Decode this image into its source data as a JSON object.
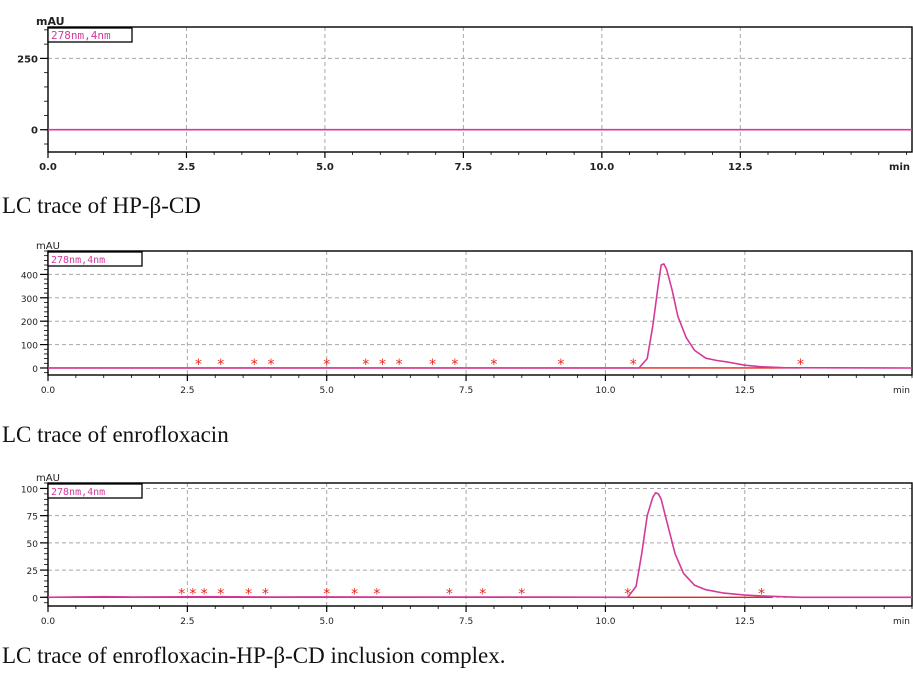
{
  "chart_data": [
    {
      "type": "line",
      "unit_label": "mAU",
      "legend": "278nm,4nm",
      "x_end_label": "min",
      "xlim": [
        0,
        15.6
      ],
      "ylim": [
        -78,
        360
      ],
      "x_ticks": [
        0,
        2.5,
        5,
        7.5,
        10,
        12.5
      ],
      "x_tick_labels": [
        "0.0",
        "2.5",
        "5.0",
        "7.5",
        "10.0",
        "12.5"
      ],
      "y_ticks": [
        0,
        250
      ],
      "y_tick_labels": [
        "0",
        "250"
      ],
      "grid": true,
      "series": [
        {
          "color": "#d4399a",
          "x": [
            0,
            15.6
          ],
          "y": [
            0,
            0
          ]
        }
      ],
      "baseline": {
        "color": "#e8231a",
        "x": [
          0,
          0.6
        ],
        "y": [
          0,
          0
        ]
      },
      "peak_markers": [],
      "caption": "LC trace of HP-β-CD"
    },
    {
      "type": "line",
      "unit_label": "mAU",
      "legend": "278nm,4nm",
      "x_end_label": "min",
      "xlim": [
        0,
        15.5
      ],
      "ylim": [
        -30,
        500
      ],
      "x_ticks": [
        0,
        2.5,
        5,
        7.5,
        10,
        12.5
      ],
      "x_tick_labels": [
        "0.0",
        "2.5",
        "5.0",
        "7.5",
        "10.0",
        "12.5"
      ],
      "y_ticks": [
        0,
        100,
        200,
        300,
        400
      ],
      "y_tick_labels": [
        "0",
        "100",
        "200",
        "300",
        "400"
      ],
      "grid": true,
      "series": [
        {
          "color": "#d4399a",
          "x": [
            0,
            10.6,
            10.75,
            10.85,
            10.95,
            11.0,
            11.05,
            11.1,
            11.2,
            11.3,
            11.45,
            11.6,
            11.8,
            12.0,
            12.2,
            12.5,
            12.8,
            13.2,
            15.5
          ],
          "y": [
            0,
            0,
            40,
            180,
            360,
            440,
            445,
            420,
            330,
            220,
            130,
            75,
            42,
            32,
            25,
            12,
            5,
            1,
            0
          ]
        }
      ],
      "baseline": {
        "color": "#e8231a",
        "x": [
          0,
          10.6,
          13.5
        ],
        "y": [
          0,
          0,
          0
        ]
      },
      "peak_markers": [
        2.7,
        3.1,
        3.7,
        4.0,
        5.0,
        5.7,
        6.0,
        6.3,
        6.9,
        7.3,
        8.0,
        9.2,
        10.5,
        13.5
      ],
      "caption": "LC trace of enrofloxacin"
    },
    {
      "type": "line",
      "unit_label": "mAU",
      "legend": "278nm,4nm",
      "x_end_label": "min",
      "xlim": [
        0,
        15.5
      ],
      "ylim": [
        -8,
        105
      ],
      "x_ticks": [
        0,
        2.5,
        5,
        7.5,
        10,
        12.5
      ],
      "x_tick_labels": [
        "0.0",
        "2.5",
        "5.0",
        "7.5",
        "10.0",
        "12.5"
      ],
      "y_ticks": [
        0,
        25,
        50,
        75,
        100
      ],
      "y_tick_labels": [
        "0",
        "25",
        "50",
        "75",
        "100"
      ],
      "grid": true,
      "series": [
        {
          "color": "#d4399a",
          "x": [
            0,
            1.0,
            1.5,
            2.0,
            3.0,
            4.0,
            5.0,
            6.0,
            7.0,
            8.0,
            9.0,
            10.4,
            10.55,
            10.65,
            10.75,
            10.85,
            10.9,
            10.95,
            11.0,
            11.1,
            11.25,
            11.4,
            11.6,
            11.8,
            12.1,
            12.5,
            12.9,
            13.5,
            15.5
          ],
          "y": [
            0,
            0.5,
            0.3,
            0.4,
            0.5,
            0.3,
            0.4,
            0.3,
            0.2,
            0.3,
            0.2,
            0,
            10,
            40,
            75,
            92,
            96,
            95,
            90,
            70,
            40,
            22,
            11,
            7,
            4,
            2,
            1,
            0,
            0
          ]
        }
      ],
      "baseline": {
        "color": "#e8231a",
        "x": [
          0,
          10.4,
          13.0
        ],
        "y": [
          0,
          0,
          0
        ]
      },
      "peak_markers": [
        2.4,
        2.6,
        2.8,
        3.1,
        3.6,
        3.9,
        5.0,
        5.5,
        5.9,
        7.2,
        7.8,
        8.5,
        10.4,
        12.8
      ],
      "caption": "LC trace of enrofloxacin-HP-β-CD inclusion complex."
    }
  ]
}
